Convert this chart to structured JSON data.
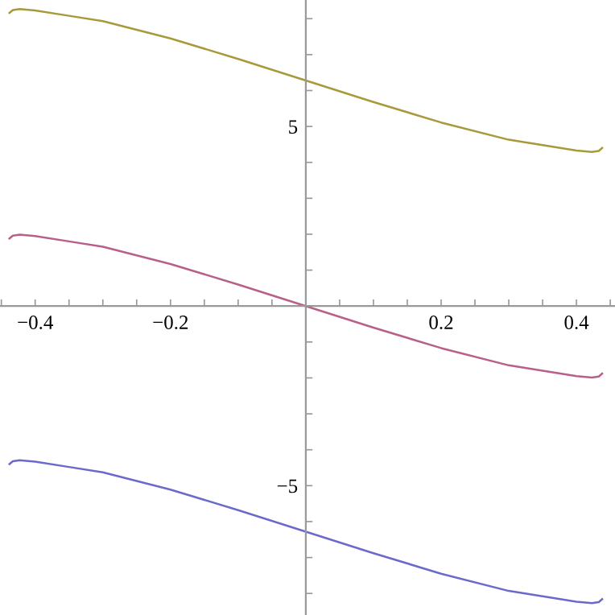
{
  "chart_data": {
    "type": "line",
    "x": [
      -0.438,
      -0.433,
      -0.423,
      -0.4,
      -0.35,
      -0.3,
      -0.2,
      -0.1,
      0,
      0.1,
      0.2,
      0.3,
      0.35,
      0.4,
      0.423,
      0.433,
      0.438
    ],
    "series": [
      {
        "color": "#a89a3a",
        "values": [
          8.16,
          8.24,
          8.27,
          8.23,
          8.08,
          7.93,
          7.45,
          6.88,
          6.28,
          5.68,
          5.11,
          4.63,
          4.48,
          4.33,
          4.29,
          4.32,
          4.4
        ]
      },
      {
        "color": "#b8608a",
        "values": [
          1.88,
          1.96,
          1.99,
          1.95,
          1.8,
          1.65,
          1.17,
          0.6,
          0,
          -0.6,
          -1.17,
          -1.65,
          -1.8,
          -1.95,
          -1.99,
          -1.96,
          -1.88
        ]
      },
      {
        "color": "#6a6acc",
        "values": [
          -4.4,
          -4.32,
          -4.29,
          -4.33,
          -4.48,
          -4.63,
          -5.11,
          -5.68,
          -6.28,
          -6.88,
          -7.45,
          -7.93,
          -8.08,
          -8.23,
          -8.27,
          -8.24,
          -8.16
        ]
      }
    ],
    "xlim": [
      -0.452,
      0.457
    ],
    "ylim": [
      -8.6,
      8.52
    ],
    "xticks": [
      {
        "value": -0.45,
        "label": null
      },
      {
        "value": -0.4,
        "label": "−0.4"
      },
      {
        "value": -0.35,
        "label": null
      },
      {
        "value": -0.3,
        "label": null
      },
      {
        "value": -0.25,
        "label": null
      },
      {
        "value": -0.2,
        "label": "−0.2"
      },
      {
        "value": -0.15,
        "label": null
      },
      {
        "value": -0.1,
        "label": null
      },
      {
        "value": -0.05,
        "label": null
      },
      {
        "value": 0.05,
        "label": null
      },
      {
        "value": 0.1,
        "label": null
      },
      {
        "value": 0.15,
        "label": null
      },
      {
        "value": 0.2,
        "label": "0.2"
      },
      {
        "value": 0.25,
        "label": null
      },
      {
        "value": 0.3,
        "label": null
      },
      {
        "value": 0.35,
        "label": null
      },
      {
        "value": 0.4,
        "label": "0.4"
      },
      {
        "value": 0.45,
        "label": null
      }
    ],
    "yticks": [
      {
        "value": -8,
        "label": null
      },
      {
        "value": -7,
        "label": null
      },
      {
        "value": -6,
        "label": null
      },
      {
        "value": -5,
        "label": "−5"
      },
      {
        "value": -4,
        "label": null
      },
      {
        "value": -3,
        "label": null
      },
      {
        "value": -2,
        "label": null
      },
      {
        "value": -1,
        "label": null
      },
      {
        "value": 1,
        "label": null
      },
      {
        "value": 2,
        "label": null
      },
      {
        "value": 3,
        "label": null
      },
      {
        "value": 4,
        "label": null
      },
      {
        "value": 5,
        "label": "5"
      },
      {
        "value": 6,
        "label": null
      },
      {
        "value": 7,
        "label": null
      },
      {
        "value": 8,
        "label": null
      }
    ],
    "grid": false,
    "legend": false,
    "marker": "none",
    "line_style": "solid"
  }
}
